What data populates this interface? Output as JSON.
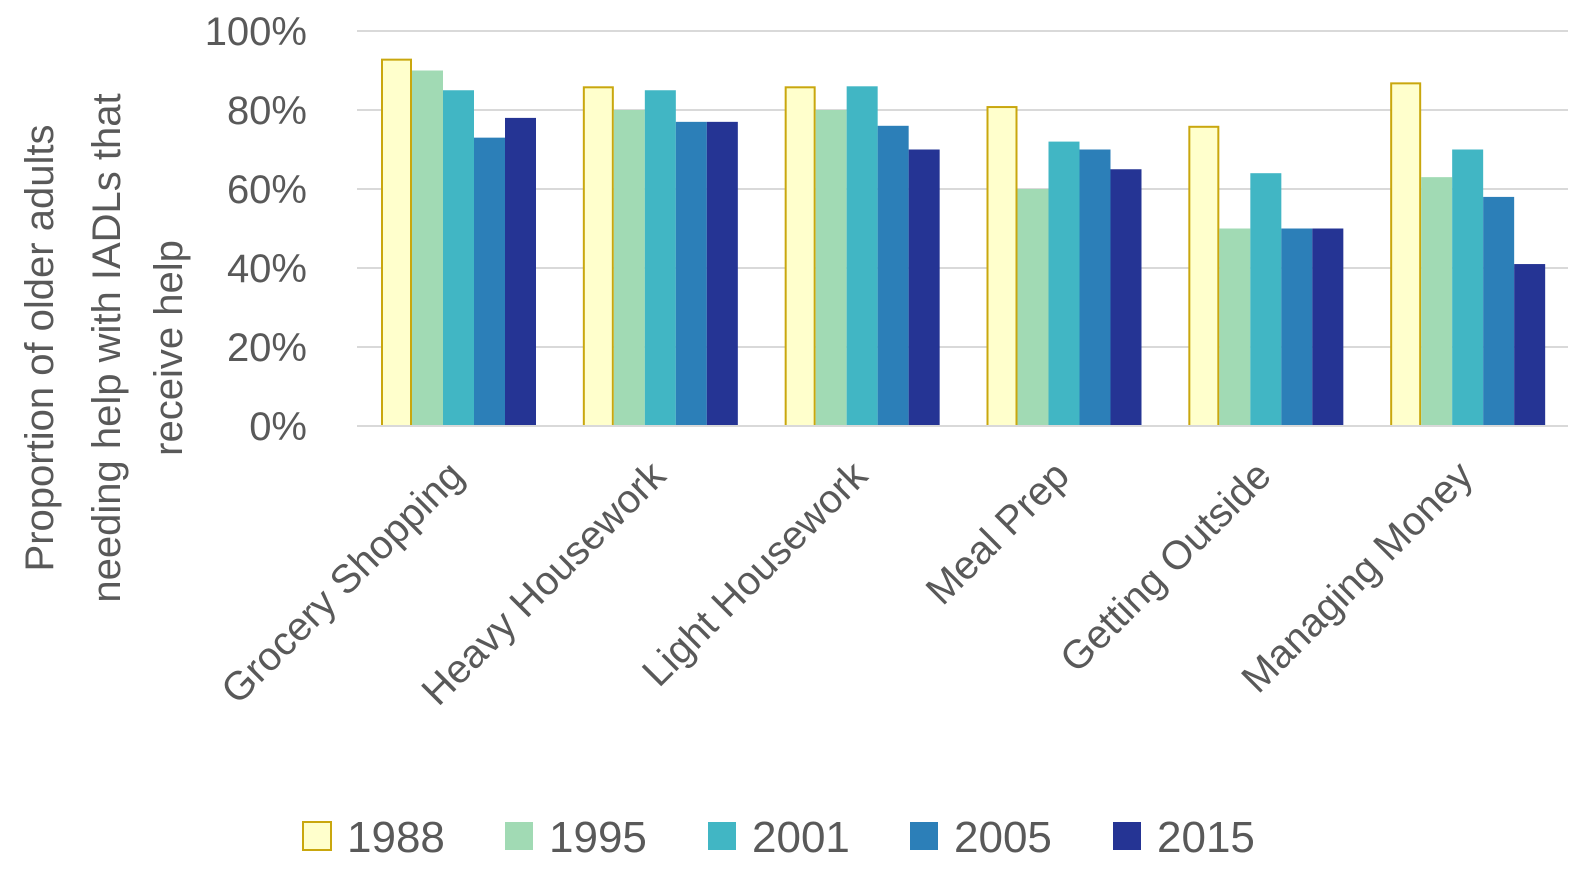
{
  "chart_data": {
    "type": "bar",
    "title": "",
    "xlabel": "",
    "ylabel": "Proportion of older adults needing help with IADLs that receive help",
    "ylabel_lines": [
      "Proportion of older adults",
      "needing help with IADLs that",
      "receive help"
    ],
    "ylim": [
      0,
      100
    ],
    "y_tick_values": [
      0,
      20,
      40,
      60,
      80,
      100
    ],
    "y_tick_labels": [
      "0%",
      "20%",
      "40%",
      "60%",
      "80%",
      "100%"
    ],
    "grid": "horizontal",
    "legend_position": "bottom",
    "categories": [
      "Grocery Shopping",
      "Heavy Housework",
      "Light Housework",
      "Meal Prep",
      "Getting Outside",
      "Managing Money"
    ],
    "series": [
      {
        "name": "1988",
        "color": "#FFFFCC",
        "stroke": "#C9A70E",
        "values": [
          93,
          86,
          86,
          81,
          76,
          87
        ]
      },
      {
        "name": "1995",
        "color": "#A1DAB4",
        "stroke": "none",
        "values": [
          90,
          80,
          80,
          60,
          50,
          63
        ]
      },
      {
        "name": "2001",
        "color": "#41B6C4",
        "stroke": "none",
        "values": [
          85,
          85,
          86,
          72,
          64,
          70
        ]
      },
      {
        "name": "2005",
        "color": "#2C7FB8",
        "stroke": "none",
        "values": [
          73,
          77,
          76,
          70,
          50,
          58
        ]
      },
      {
        "name": "2015",
        "color": "#253494",
        "stroke": "none",
        "values": [
          78,
          77,
          70,
          65,
          50,
          41
        ]
      }
    ]
  }
}
